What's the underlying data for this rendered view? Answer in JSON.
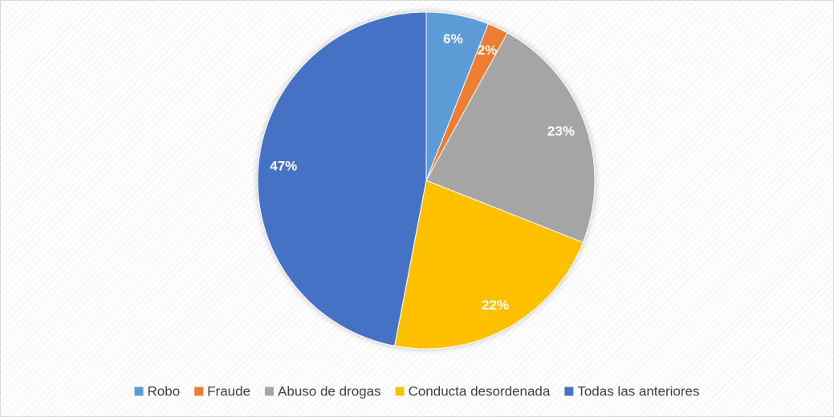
{
  "chart_data": {
    "type": "pie",
    "categories": [
      "Robo",
      "Fraude",
      "Abuso de drogas",
      "Conducta desordenada",
      "Todas las anteriores"
    ],
    "values": [
      6,
      2,
      23,
      22,
      47
    ],
    "value_labels": [
      "6%",
      "2%",
      "23%",
      "22%",
      "47%"
    ],
    "colors": [
      "#5b9bd5",
      "#ed7d31",
      "#a5a5a5",
      "#ffc000",
      "#4472c4"
    ],
    "legend": "bottom"
  }
}
